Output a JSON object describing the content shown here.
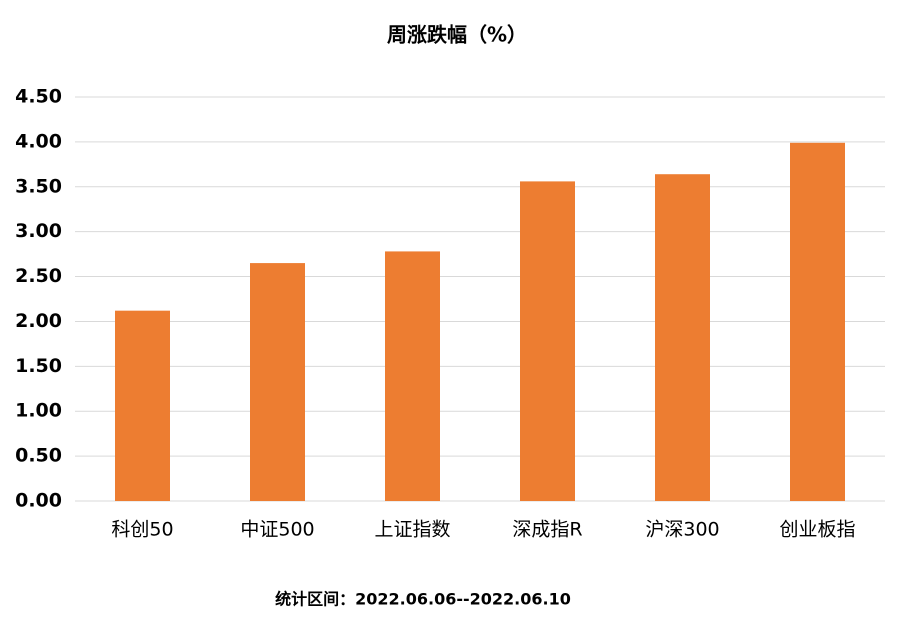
{
  "chart_data": {
    "type": "bar",
    "title": "周涨跌幅（%）",
    "categories": [
      "科创50",
      "中证500",
      "上证指数",
      "深成指R",
      "沪深300",
      "创业板指"
    ],
    "values": [
      2.12,
      2.65,
      2.78,
      3.56,
      3.64,
      3.99
    ],
    "color": "#ed7d31",
    "ylim": [
      0,
      4.5
    ],
    "yticks": [
      {
        "value": 0,
        "label": "0.00"
      },
      {
        "value": 0.5,
        "label": "0.50"
      },
      {
        "value": 1,
        "label": "1.00"
      },
      {
        "value": 1.5,
        "label": "1.50"
      },
      {
        "value": 2,
        "label": "2.00"
      },
      {
        "value": 2.5,
        "label": "2.50"
      },
      {
        "value": 3,
        "label": "3.00"
      },
      {
        "value": 3.5,
        "label": "3.50"
      },
      {
        "value": 4,
        "label": "4.00"
      },
      {
        "value": 4.5,
        "label": "4.50"
      }
    ],
    "grid": true,
    "footnote": "统计区间：2022.06.06--2022.06.10"
  }
}
